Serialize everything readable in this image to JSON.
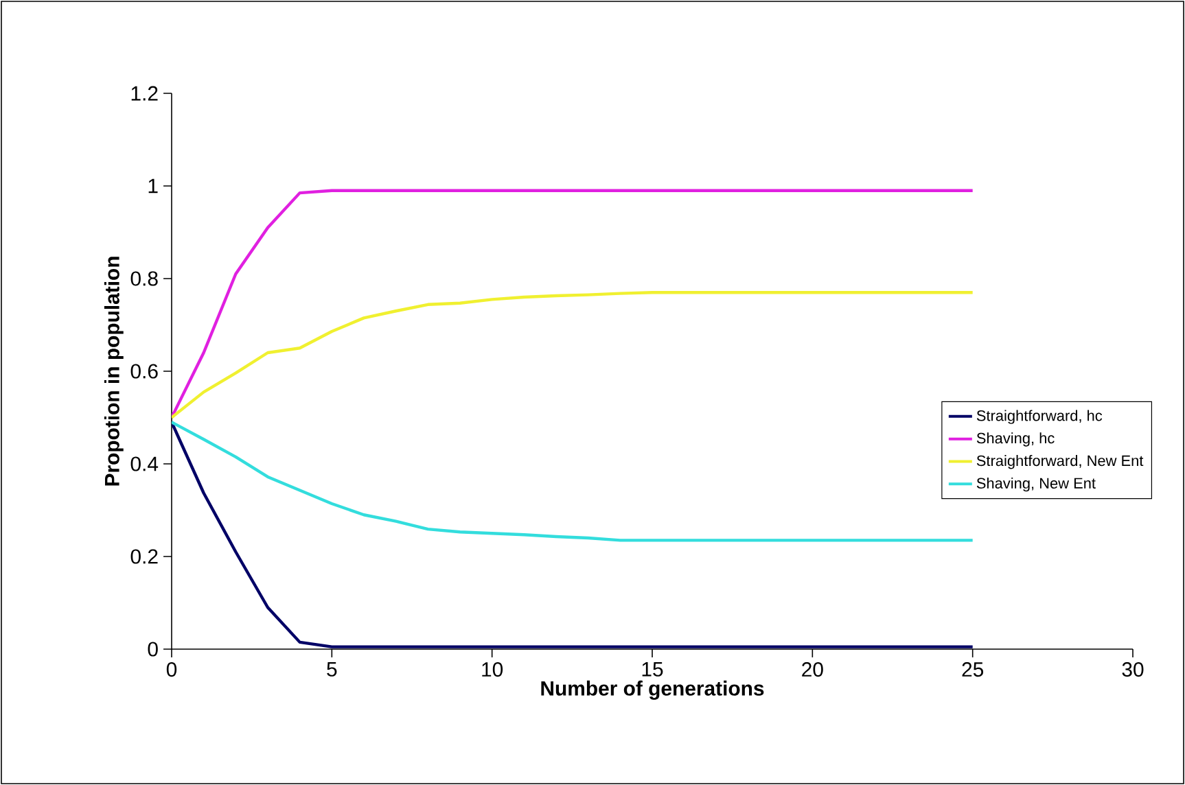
{
  "chart_data": {
    "type": "line",
    "xlabel": "Number of generations",
    "ylabel": "Propotion in population",
    "x": [
      0,
      1,
      2,
      3,
      4,
      5,
      6,
      7,
      8,
      9,
      10,
      11,
      12,
      13,
      14,
      15,
      16,
      17,
      18,
      19,
      20,
      21,
      22,
      23,
      24,
      25
    ],
    "xlim": [
      0,
      30
    ],
    "xticks": [
      0,
      5,
      10,
      15,
      20,
      25,
      30
    ],
    "ylim": [
      0,
      1.2
    ],
    "yticks": [
      0,
      0.2,
      0.4,
      0.6,
      0.8,
      1,
      1.2
    ],
    "legend": "right",
    "grid": false,
    "marker": "none",
    "line_style": "solid",
    "series": [
      {
        "name": "Straightforward, hc",
        "color": "#000066",
        "values": [
          0.49,
          0.337,
          0.21,
          0.09,
          0.015,
          0.005,
          0.005,
          0.005,
          0.005,
          0.005,
          0.005,
          0.005,
          0.005,
          0.005,
          0.005,
          0.005,
          0.005,
          0.005,
          0.005,
          0.005,
          0.005,
          0.005,
          0.005,
          0.005,
          0.005,
          0.005
        ]
      },
      {
        "name": "Shaving, hc",
        "color": "#e020e0",
        "values": [
          0.5,
          0.64,
          0.81,
          0.91,
          0.985,
          0.99,
          0.99,
          0.99,
          0.99,
          0.99,
          0.99,
          0.99,
          0.99,
          0.99,
          0.99,
          0.99,
          0.99,
          0.99,
          0.99,
          0.99,
          0.99,
          0.99,
          0.99,
          0.99,
          0.99,
          0.99
        ]
      },
      {
        "name": "Straightforward, New Ent",
        "color": "#f0f030",
        "values": [
          0.5,
          0.555,
          0.596,
          0.64,
          0.65,
          0.686,
          0.715,
          0.73,
          0.744,
          0.747,
          0.755,
          0.76,
          0.763,
          0.765,
          0.768,
          0.77,
          0.77,
          0.77,
          0.77,
          0.77,
          0.77,
          0.77,
          0.77,
          0.77,
          0.77,
          0.77
        ]
      },
      {
        "name": "Shaving, New Ent",
        "color": "#33dddd",
        "values": [
          0.49,
          0.453,
          0.415,
          0.372,
          0.343,
          0.314,
          0.29,
          0.276,
          0.259,
          0.253,
          0.25,
          0.247,
          0.243,
          0.24,
          0.235,
          0.235,
          0.235,
          0.235,
          0.235,
          0.235,
          0.235,
          0.235,
          0.235,
          0.235,
          0.235,
          0.235
        ]
      }
    ]
  }
}
